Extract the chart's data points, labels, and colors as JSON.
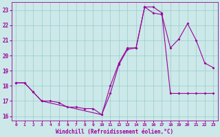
{
  "xlabel": "Windchill (Refroidissement éolien,°C)",
  "bg_color": "#cce8e8",
  "line_color": "#990099",
  "grid_color": "#99cccc",
  "xlim": [
    -0.5,
    23.5
  ],
  "ylim": [
    15.7,
    23.5
  ],
  "xticks": [
    0,
    1,
    2,
    3,
    4,
    5,
    6,
    7,
    8,
    9,
    10,
    11,
    12,
    13,
    14,
    15,
    16,
    17,
    18,
    19,
    20,
    21,
    22,
    23
  ],
  "yticks": [
    16,
    17,
    18,
    19,
    20,
    21,
    22,
    23
  ],
  "line1_x": [
    0,
    1,
    2,
    3,
    4,
    5,
    6,
    7,
    8,
    9,
    10,
    11,
    12,
    13,
    14,
    15,
    16,
    17,
    18,
    19,
    20,
    21,
    22,
    23
  ],
  "line1_y": [
    18.2,
    18.2,
    17.6,
    17.0,
    17.0,
    16.9,
    16.6,
    16.6,
    16.5,
    16.5,
    16.1,
    17.5,
    19.4,
    20.4,
    20.5,
    23.2,
    23.2,
    22.8,
    17.5,
    17.5,
    17.5,
    17.5,
    17.5,
    17.5
  ],
  "line2_x": [
    0,
    1,
    2,
    3,
    10,
    11,
    12,
    13,
    14,
    15,
    16,
    17,
    18,
    19,
    20,
    21,
    22,
    23
  ],
  "line2_y": [
    18.2,
    18.2,
    17.6,
    17.0,
    16.1,
    18.0,
    19.5,
    20.5,
    20.5,
    23.2,
    22.8,
    22.7,
    20.5,
    21.1,
    22.1,
    21.0,
    19.5,
    19.2
  ]
}
